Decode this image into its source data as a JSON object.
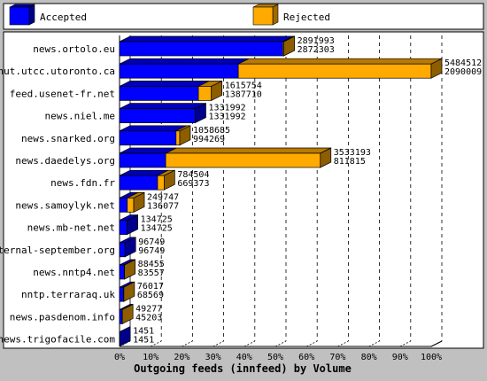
{
  "chart_data": {
    "type": "bar",
    "orientation": "horizontal",
    "stacked": false,
    "xlabel": "Outgoing feeds (innfeed) by Volume",
    "xlim": [
      0,
      100
    ],
    "xunit": "%",
    "ticks": [
      "0%",
      "10%",
      "20%",
      "30%",
      "40%",
      "50%",
      "60%",
      "70%",
      "80%",
      "90%",
      "100%"
    ],
    "grid": true,
    "legend_position": "top",
    "max_value": 5484512,
    "colors": {
      "accepted": "#0000ff",
      "rejected": "#ffaa00"
    },
    "series": [
      {
        "name": "Accepted",
        "color": "#0000ff"
      },
      {
        "name": "Rejected",
        "color": "#ffaa00"
      }
    ],
    "categories": [
      "news.ortolo.eu",
      "nut.utcc.utoronto.ca",
      "feed.usenet-fr.net",
      "news.niel.me",
      "news.snarked.org",
      "news.daedelys.org",
      "news.fdn.fr",
      "news.samoylyk.net",
      "news.mb-net.net",
      "eternal-september.org",
      "news.nntp4.net",
      "nntp.terraraq.uk",
      "news.pasdenom.info",
      "news.trigofacile.com"
    ],
    "offered": [
      2891993,
      5484512,
      1615754,
      1331992,
      1058685,
      3533193,
      784504,
      249747,
      134725,
      96749,
      88455,
      76017,
      49277,
      1451
    ],
    "accepted": [
      2872303,
      2090009,
      1387710,
      1331992,
      994269,
      811815,
      669373,
      136077,
      134725,
      96749,
      83557,
      68569,
      45203,
      1451
    ]
  }
}
